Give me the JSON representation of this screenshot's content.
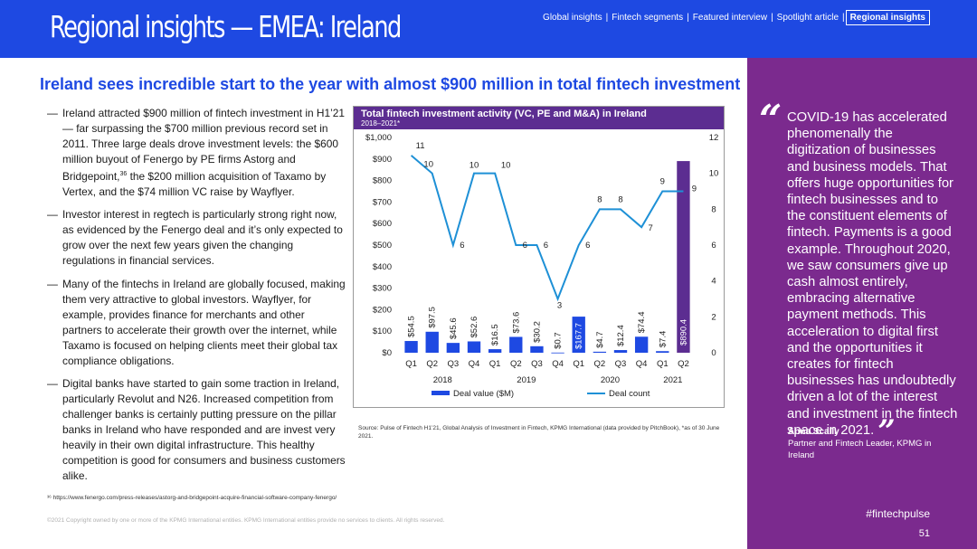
{
  "header": {
    "title": "Regional insights — EMEA: Ireland",
    "nav": [
      {
        "label": "Global insights"
      },
      {
        "label": "Fintech segments"
      },
      {
        "label": "Featured interview"
      },
      {
        "label": "Spotlight article"
      },
      {
        "label": "Regional insights",
        "active": true
      }
    ],
    "separator": "|"
  },
  "headline": "Ireland sees incredible start to the year with almost $900 million in total fintech investment",
  "bullets": [
    {
      "pre": "Ireland attracted $900 million of fintech investment in H1’21 — far surpassing the $700 million previous record set in 2011. Three large deals drove investment levels: the $600 million buyout of Fenergo by PE firms Astorg and Bridgepoint,",
      "sup": "36",
      "post": " the $200 million acquisition of Taxamo by Vertex, and the $74 million VC raise by Wayflyer."
    },
    {
      "pre": "Investor interest in regtech is particularly strong right now, as evidenced by the Fenergo deal and it’s only expected to grow over the next few years given the changing regulations in financial services.",
      "sup": "",
      "post": ""
    },
    {
      "pre": "Many of the fintechs in Ireland are globally focused, making them very attractive to global investors. Wayflyer, for example, provides finance for merchants and other partners to accelerate their growth over the internet, while Taxamo is focused on helping clients meet their global tax compliance obligations.",
      "sup": "",
      "post": ""
    },
    {
      "pre": "Digital banks have started to gain some traction in Ireland, particularly Revolut and N26. Increased competition from challenger banks is certainly putting pressure on the pillar banks in Ireland who have responded and are invest very heavily in their own digital infrastructure. This healthy competition is good for consumers and business customers alike.",
      "sup": "",
      "post": ""
    }
  ],
  "bullet_dash": "—",
  "footnote": "³⁶ https://www.fenergo.com/press-releases/astorg-and-bridgepoint-acquire-financial-software-company-fenergo/",
  "copyright": "©2021 Copyright owned by one or more of the KPMG International entities. KPMG International entities provide no services to clients. All rights reserved.",
  "source": "Source: Pulse of Fintech H1’21, Global Analysis of Investment in Fintech, KPMG International (data provided by PitchBook), *as of 30 June 2021.",
  "quote": {
    "open_mark": "“",
    "text": "COVID-19 has accelerated phenomenally the digitization of businesses and business models. That offers huge opportunities for fintech businesses and to the constituent elements of fintech. Payments is a good example. Throughout 2020, we saw consumers give up cash almost entirely, embracing alternative payment methods. This acceleration to digital first and the opportunities it creates for fintech businesses has undoubtedly driven a lot of the interest and investment in the fintech space in 2021.",
    "close_mark": "”",
    "author": "Anna Scally",
    "role": "Partner and Fintech Leader, KPMG in Ireland"
  },
  "hashtag": "#fintechpulse",
  "page_number": "51",
  "colors": {
    "header_blue": "#1e49e2",
    "purple": "#7b2a8e",
    "chart_title_bg": "#5c2d91",
    "bar_blue": "#1e49e2",
    "bar_highlight": "#5c2d91",
    "line_color": "#1e90d6"
  },
  "chart_data": {
    "type": "bar+line",
    "title": "Total fintech investment activity (VC, PE and M&A) in Ireland",
    "subtitle": "2018–2021*",
    "categories": [
      "Q1",
      "Q2",
      "Q3",
      "Q4",
      "Q1",
      "Q2",
      "Q3",
      "Q4",
      "Q1",
      "Q2",
      "Q3",
      "Q4",
      "Q1",
      "Q2"
    ],
    "year_groups": [
      {
        "label": "2018",
        "start": 0,
        "end": 3
      },
      {
        "label": "2019",
        "start": 4,
        "end": 7
      },
      {
        "label": "2020",
        "start": 8,
        "end": 11
      },
      {
        "label": "2021",
        "start": 12,
        "end": 13
      }
    ],
    "series": [
      {
        "name": "Deal value ($M)",
        "type": "bar",
        "axis": "left",
        "values": [
          54.5,
          97.5,
          45.6,
          52.6,
          16.5,
          73.6,
          30.2,
          0.7,
          167.7,
          4.7,
          12.4,
          74.4,
          7.4,
          890.4
        ],
        "labels": [
          "$54.5",
          "$97.5",
          "$45.6",
          "$52.6",
          "$16.5",
          "$73.6",
          "$30.2",
          "$0.7",
          "$167.7",
          "$4.7",
          "$12.4",
          "$74.4",
          "$7.4",
          "$890.4"
        ]
      },
      {
        "name": "Deal count",
        "type": "line",
        "axis": "right",
        "values": [
          11,
          10,
          6,
          10,
          10,
          6,
          6,
          3,
          6,
          8,
          8,
          7,
          9,
          9
        ]
      }
    ],
    "y_left": {
      "min": 0,
      "max": 1000,
      "ticks": [
        "$0",
        "$100",
        "$200",
        "$300",
        "$400",
        "$500",
        "$600",
        "$700",
        "$800",
        "$900",
        "$1,000"
      ]
    },
    "y_right": {
      "min": 0,
      "max": 12,
      "ticks": [
        "0",
        "2",
        "4",
        "6",
        "8",
        "10",
        "12"
      ]
    },
    "legend": [
      "Deal value ($M)",
      "Deal count"
    ],
    "legend_position": "bottom"
  }
}
